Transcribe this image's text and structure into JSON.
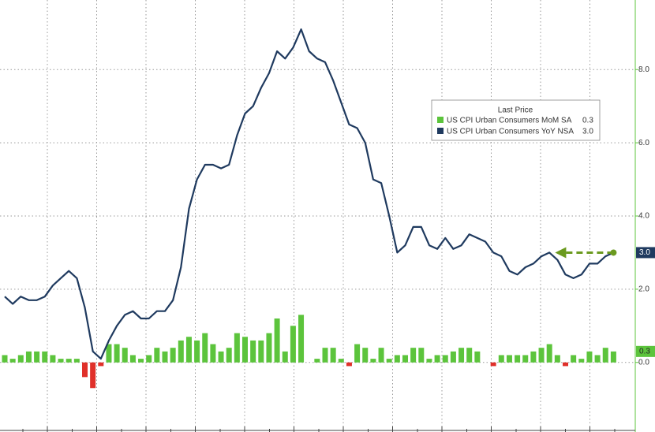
{
  "chart_data": {
    "type": "bar-line",
    "ylim": [
      -1.9,
      9.9
    ],
    "yticks": [
      {
        "value": 0,
        "label": "0.0"
      },
      {
        "value": 2,
        "label": "2.0"
      },
      {
        "value": 4,
        "label": "4.0"
      },
      {
        "value": 6,
        "label": "6.0"
      },
      {
        "value": 8,
        "label": "8.0"
      }
    ],
    "grid": true,
    "legend_title": "Last Price",
    "series": [
      {
        "name": "US CPI Urban Consumers MoM SA",
        "type": "bar",
        "color": "#5cc43c",
        "negative_color": "#e0302a",
        "last_value_label": "0.3",
        "values": [
          0.2,
          0.1,
          0.2,
          0.3,
          0.3,
          0.3,
          0.2,
          0.1,
          0.1,
          0.1,
          -0.4,
          -0.7,
          -0.1,
          0.5,
          0.5,
          0.4,
          0.2,
          0.1,
          0.2,
          0.4,
          0.3,
          0.4,
          0.6,
          0.7,
          0.6,
          0.8,
          0.5,
          0.3,
          0.4,
          0.8,
          0.7,
          0.6,
          0.6,
          0.8,
          1.2,
          0.3,
          1.0,
          1.3,
          0.0,
          0.1,
          0.4,
          0.4,
          0.1,
          -0.1,
          0.5,
          0.4,
          0.1,
          0.4,
          0.1,
          0.2,
          0.2,
          0.4,
          0.4,
          0.1,
          0.2,
          0.2,
          0.3,
          0.4,
          0.4,
          0.3,
          0.0,
          -0.1,
          0.2,
          0.2,
          0.2,
          0.2,
          0.3,
          0.4,
          0.5,
          0.2,
          -0.1,
          0.2,
          0.1,
          0.3,
          0.2,
          0.4,
          0.3
        ]
      },
      {
        "name": "US CPI Urban Consumers YoY NSA",
        "type": "line",
        "color": "#1f3a5f",
        "last_value_label": "3.0",
        "values": [
          1.8,
          1.6,
          1.8,
          1.7,
          1.7,
          1.8,
          2.1,
          2.3,
          2.5,
          2.3,
          1.5,
          0.3,
          0.1,
          0.6,
          1.0,
          1.3,
          1.4,
          1.2,
          1.2,
          1.4,
          1.4,
          1.7,
          2.6,
          4.2,
          5.0,
          5.4,
          5.4,
          5.3,
          5.4,
          6.2,
          6.8,
          7.0,
          7.5,
          7.9,
          8.5,
          8.3,
          8.6,
          9.1,
          8.5,
          8.3,
          8.2,
          7.7,
          7.1,
          6.5,
          6.4,
          6.0,
          5.0,
          4.9,
          4.0,
          3.0,
          3.2,
          3.7,
          3.7,
          3.2,
          3.1,
          3.4,
          3.1,
          3.2,
          3.5,
          3.4,
          3.3,
          3.0,
          2.9,
          2.5,
          2.4,
          2.6,
          2.7,
          2.9,
          3.0,
          2.8,
          2.4,
          2.3,
          2.4,
          2.7,
          2.7,
          2.9,
          3.0
        ]
      }
    ]
  }
}
